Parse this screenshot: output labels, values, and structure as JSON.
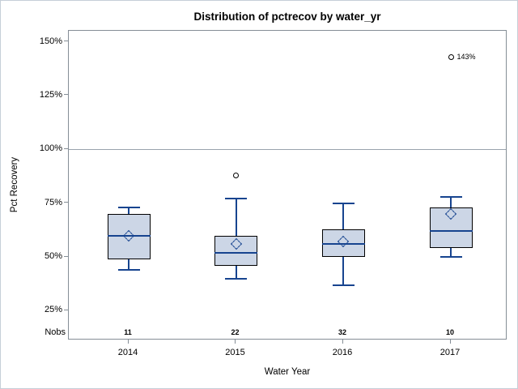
{
  "chart_data": {
    "type": "boxplot",
    "title": "Distribution of pctrecov by water_yr",
    "xlabel": "Water Year",
    "ylabel": "Pct Recovery",
    "nobs_label": "Nobs",
    "categories": [
      "2014",
      "2015",
      "2016",
      "2017"
    ],
    "nobs": [
      11,
      22,
      32,
      10
    ],
    "y_ticks": [
      150,
      125,
      100,
      75,
      50,
      25
    ],
    "y_tick_suffix": "%",
    "ylim": [
      11,
      155
    ],
    "reference_line": 100,
    "grid": "off",
    "legend": "none",
    "series": [
      {
        "category": "2014",
        "n": 11,
        "whisker_low": 44,
        "q1": 49,
        "median": 60,
        "mean": 60,
        "q3": 70,
        "whisker_high": 73,
        "outliers": [],
        "outlier_labels": []
      },
      {
        "category": "2015",
        "n": 22,
        "whisker_low": 40,
        "q1": 46,
        "median": 52,
        "mean": 56,
        "q3": 60,
        "whisker_high": 77,
        "outliers": [
          88
        ],
        "outlier_labels": []
      },
      {
        "category": "2016",
        "n": 32,
        "whisker_low": 37,
        "q1": 50,
        "median": 56,
        "mean": 57,
        "q3": 63,
        "whisker_high": 75,
        "outliers": [],
        "outlier_labels": []
      },
      {
        "category": "2017",
        "n": 10,
        "whisker_low": 50,
        "q1": 54,
        "median": 62,
        "mean": 70,
        "q3": 73,
        "whisker_high": 78,
        "outliers": [
          143
        ],
        "outlier_labels": [
          "143%"
        ]
      }
    ],
    "colors": {
      "box_fill": "#ccd6e6",
      "box_border": "#000000",
      "line_blue": "#17448f",
      "reference_line": "#99a3ad",
      "frame": "#858e96",
      "text": "#000000",
      "outlier": "#000000"
    }
  }
}
